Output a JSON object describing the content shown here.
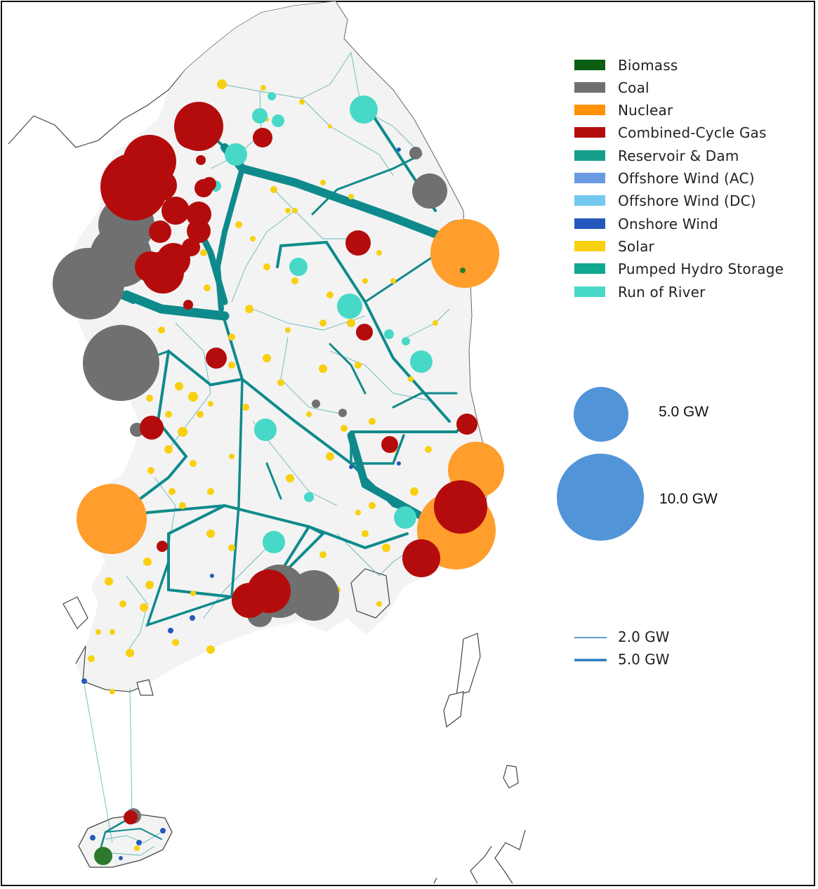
{
  "legend": {
    "items": [
      {
        "label": "Biomass",
        "color": "#0b5e14"
      },
      {
        "label": "Coal",
        "color": "#707070"
      },
      {
        "label": "Nuclear",
        "color": "#ff9208"
      },
      {
        "label": "Combined-Cycle Gas",
        "color": "#b40c0c"
      },
      {
        "label": "Reservoir & Dam",
        "color": "#14a08c"
      },
      {
        "label": "Offshore Wind (AC)",
        "color": "#6a9ae2"
      },
      {
        "label": "Offshore Wind (DC)",
        "color": "#74c8f0"
      },
      {
        "label": "Onshore Wind",
        "color": "#2458bc"
      },
      {
        "label": "Solar",
        "color": "#f8d010"
      },
      {
        "label": "Pumped Hydro Storage",
        "color": "#10a890"
      },
      {
        "label": "Run of River",
        "color": "#48d8c8"
      }
    ]
  },
  "capacity_scale": {
    "small_label": "5.0 GW",
    "large_label": "10.0 GW",
    "color": "#5294d8"
  },
  "line_scale": {
    "thin_label": "2.0 GW",
    "thick_label": "5.0 GW",
    "color": "#2c7bc0"
  },
  "colors": {
    "line": "#0f8a8c",
    "land": "#f3f3f3",
    "coast": "#444444"
  }
}
